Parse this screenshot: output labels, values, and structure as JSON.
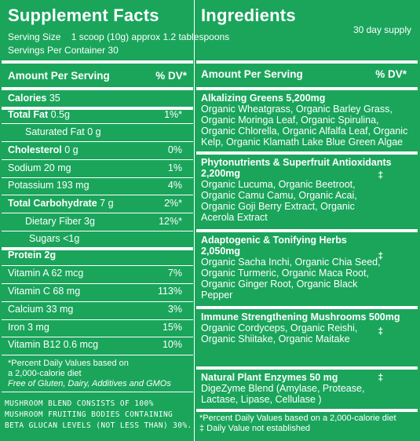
{
  "left": {
    "title": "Supplement Facts",
    "serving_size": "Serving Size    1 scoop (10g) approx 1.2 tablespoons",
    "servings_per_container": "Servings Per Container 30",
    "header_amount": "Amount Per  Serving",
    "header_dv": "% DV*",
    "rows": [
      {
        "label_bold": "Calories",
        "label": " 35",
        "dv": ""
      },
      {
        "label_bold": "Total Fat",
        "label": " 0.5g",
        "dv": "1%*"
      },
      {
        "label_bold": "",
        "label": "Saturated Fat 0 g",
        "dv": ""
      },
      {
        "label_bold": "Cholesterol",
        "label": " 0 g",
        "dv": "0%"
      },
      {
        "label_bold": "",
        "label": "Sodium 20 mg",
        "dv": "1%"
      },
      {
        "label_bold": "",
        "label": "Potassium 193 mg",
        "dv": "4%"
      },
      {
        "label_bold": "Total Carbohydrate",
        "label": " 7 g",
        "dv": "2%*"
      },
      {
        "label_bold": "",
        "label": "Dietary Fiber 3g",
        "dv": "12%*"
      },
      {
        "label_bold": "",
        "label": "Sugars <1g",
        "dv": ""
      },
      {
        "label_bold": "Protein 2g",
        "label": "",
        "dv": ""
      },
      {
        "label_bold": "",
        "label": "Vitamin A 62 mcg",
        "dv": "7%"
      },
      {
        "label_bold": "",
        "label": "Vitamin C 68 mg",
        "dv": "113%"
      },
      {
        "label_bold": "",
        "label": "Calcium 33 mg",
        "dv": "3%"
      },
      {
        "label_bold": "",
        "label": "Iron 3 mg",
        "dv": "15%"
      },
      {
        "label_bold": "",
        "label": "Vitamin B12 0.6 mcg",
        "dv": "10%"
      }
    ],
    "footnote1": "*Percent Daily Values based on",
    "footnote2": "a 2,000-calorie diet",
    "free_of": "Free of Gluten, Dairy, Additives and GMOs",
    "mushroom_note": [
      "MUSHROOM BLEND CONSISTS OF 100%",
      "MUSHROOM FRUITING BODIES CONTAINING",
      "BETA GLUCAN LEVELS (NOT LESS THAN) 30%."
    ]
  },
  "right": {
    "title": "Ingredients",
    "supply": "30 day supply",
    "header_amount": "Amount Per Serving",
    "header_dv": "% DV*",
    "sections": [
      {
        "title": "Alkalizing Greens 5,200mg",
        "dagger": "",
        "text": "Organic Wheatgrass, Organic Barley Grass, Organic Moringa Leaf, Organic Spirulina, Organic Chlorella, Organic Alfalfa Leaf, Organic Kelp, Organic Klamath Lake Blue Green Algae"
      },
      {
        "title": "Phytonutrients & Superfruit Antioxidants 2,200mg",
        "dagger": "‡",
        "text": "Organic Lucuma, Organic Beetroot, Organic Camu Camu, Organic Acai, Organic Goji Berry Extract, Organic Acerola Extract"
      },
      {
        "title": "Adaptogenic  & Tonifying Herbs 2,050mg",
        "dagger": "‡",
        "text": "Organic Sacha Inchi, Organic Chia Seed, Organic Turmeric, Organic Maca Root, Organic Ginger Root, Organic Black Pepper"
      },
      {
        "title": "Immune Strengthening Mushrooms 500mg",
        "dagger": "‡",
        "text": "Organic Cordyceps, Organic Reishi, Organic Shiitake, Organic Maitake"
      },
      {
        "title": "Natural Plant Enzymes 50 mg",
        "dagger": "‡",
        "text": "DigeZyme Blend (Amylase, Protease, Lactase, Lipase, Cellulase )"
      }
    ],
    "footnote1": "*Percent Daily Values based on a 2,000-calorie diet",
    "footnote2": "‡ Daily Value not established"
  }
}
